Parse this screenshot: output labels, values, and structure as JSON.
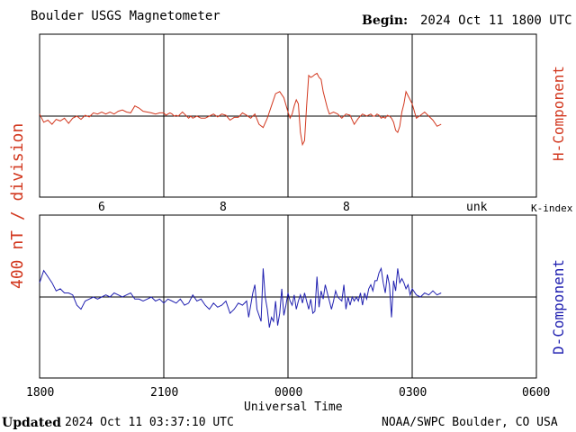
{
  "header": {
    "title": "Boulder USGS Magnetometer",
    "begin_label": "Begin:",
    "begin_value": "2024 Oct 11 1800 UTC"
  },
  "footer": {
    "updated_label": "Updated",
    "updated_value": "2024 Oct 11 03:37:10 UTC",
    "source": "NOAA/SWPC Boulder, CO USA"
  },
  "colors": {
    "h": "#d2381f",
    "d": "#2020b0",
    "axis": "#000000"
  },
  "chart_data": [
    {
      "type": "line",
      "panel": "top",
      "ylabel_right": "H-Component",
      "ylabel_left": "400 nT / division",
      "y_units": "divisions",
      "ylim": [
        -2,
        2
      ],
      "grid": true,
      "x": [
        0,
        0.1,
        0.2,
        0.3,
        0.4,
        0.5,
        0.6,
        0.7,
        0.8,
        0.9,
        1.0,
        1.1,
        1.2,
        1.3,
        1.4,
        1.5,
        1.6,
        1.7,
        1.8,
        1.9,
        2.0,
        2.1,
        2.2,
        2.3,
        2.4,
        2.5,
        2.6,
        2.7,
        2.8,
        2.9,
        3.0,
        3.05,
        3.1,
        3.15,
        3.2,
        3.25,
        3.3,
        3.35,
        3.4,
        3.45,
        3.5,
        3.55,
        3.6,
        3.65,
        3.7,
        3.8,
        3.9,
        4.0,
        4.1,
        4.2,
        4.3,
        4.4,
        4.5,
        4.6,
        4.7,
        4.8,
        4.9,
        5.0,
        5.1,
        5.2,
        5.3,
        5.4,
        5.5,
        5.6,
        5.7,
        5.8,
        5.9,
        6.0,
        6.05,
        6.1,
        6.15,
        6.2,
        6.25,
        6.3,
        6.35,
        6.4,
        6.45,
        6.5,
        6.55,
        6.6,
        6.65,
        6.7,
        6.75,
        6.8,
        6.85,
        6.9,
        6.95,
        7.0,
        7.1,
        7.2,
        7.3,
        7.4,
        7.5,
        7.6,
        7.7,
        7.8,
        7.9,
        8.0,
        8.05,
        8.1,
        8.15,
        8.2,
        8.25,
        8.3,
        8.35,
        8.4,
        8.45,
        8.5,
        8.55,
        8.6,
        8.65,
        8.7,
        8.75,
        8.8,
        8.85,
        8.9,
        9.0,
        9.1,
        9.2,
        9.3,
        9.4,
        9.5,
        9.6,
        9.7
      ],
      "series": [
        {
          "values": [
            0.05,
            -0.15,
            -0.1,
            -0.2,
            -0.08,
            -0.12,
            -0.05,
            -0.18,
            -0.05,
            0.0,
            -0.08,
            0.02,
            -0.02,
            0.08,
            0.05,
            0.1,
            0.05,
            0.1,
            0.05,
            0.12,
            0.15,
            0.1,
            0.08,
            0.25,
            0.2,
            0.12,
            0.1,
            0.08,
            0.05,
            0.08,
            0.08,
            0.02,
            0.05,
            0.08,
            0.05,
            0.0,
            0.02,
            0.0,
            0.05,
            0.1,
            0.05,
            0.0,
            -0.05,
            0.0,
            -0.05,
            0.0,
            -0.05,
            -0.05,
            0.0,
            0.05,
            -0.02,
            0.05,
            0.02,
            -0.1,
            -0.03,
            -0.03,
            0.08,
            0.02,
            -0.05,
            0.05,
            -0.2,
            -0.28,
            -0.05,
            0.25,
            0.55,
            0.6,
            0.45,
            0.1,
            -0.05,
            0.05,
            0.25,
            0.4,
            0.3,
            -0.4,
            -0.7,
            -0.6,
            0.25,
            1.0,
            0.95,
            0.98,
            1.02,
            1.05,
            0.95,
            0.9,
            0.6,
            0.4,
            0.2,
            0.05,
            0.1,
            0.05,
            -0.05,
            0.05,
            0.02,
            -0.2,
            -0.05,
            0.05,
            0.0,
            0.05,
            0.0,
            0.0,
            0.05,
            0.02,
            -0.05,
            -0.02,
            -0.05,
            0.02,
            0.0,
            -0.05,
            -0.15,
            -0.35,
            -0.4,
            -0.25,
            0.1,
            0.3,
            0.6,
            0.5,
            0.3,
            -0.05,
            0.02,
            0.1,
            0.0,
            -0.1,
            -0.25,
            -0.2
          ]
        }
      ]
    },
    {
      "type": "line",
      "panel": "bottom",
      "ylabel_right": "D-Component",
      "y_units": "divisions",
      "ylim": [
        -2,
        2
      ],
      "grid": true,
      "x": [
        0,
        0.1,
        0.2,
        0.3,
        0.4,
        0.5,
        0.6,
        0.7,
        0.8,
        0.9,
        1.0,
        1.1,
        1.2,
        1.3,
        1.4,
        1.5,
        1.6,
        1.7,
        1.8,
        1.9,
        2.0,
        2.1,
        2.2,
        2.3,
        2.4,
        2.5,
        2.6,
        2.7,
        2.8,
        2.9,
        3.0,
        3.1,
        3.2,
        3.3,
        3.4,
        3.5,
        3.6,
        3.7,
        3.8,
        3.9,
        4.0,
        4.1,
        4.2,
        4.3,
        4.4,
        4.5,
        4.6,
        4.7,
        4.8,
        4.9,
        5.0,
        5.05,
        5.1,
        5.15,
        5.2,
        5.25,
        5.3,
        5.35,
        5.4,
        5.45,
        5.5,
        5.55,
        5.6,
        5.65,
        5.7,
        5.75,
        5.8,
        5.85,
        5.9,
        5.95,
        6.0,
        6.05,
        6.1,
        6.15,
        6.2,
        6.25,
        6.3,
        6.35,
        6.4,
        6.45,
        6.5,
        6.55,
        6.6,
        6.65,
        6.7,
        6.75,
        6.8,
        6.85,
        6.9,
        6.95,
        7.0,
        7.05,
        7.1,
        7.15,
        7.2,
        7.25,
        7.3,
        7.35,
        7.4,
        7.45,
        7.5,
        7.55,
        7.6,
        7.65,
        7.7,
        7.75,
        7.8,
        7.85,
        7.9,
        7.95,
        8.0,
        8.05,
        8.1,
        8.15,
        8.2,
        8.25,
        8.3,
        8.35,
        8.4,
        8.45,
        8.5,
        8.55,
        8.6,
        8.65,
        8.7,
        8.75,
        8.8,
        8.85,
        8.9,
        8.95,
        9.0,
        9.1,
        9.2,
        9.3,
        9.4,
        9.5,
        9.6,
        9.7
      ],
      "series": [
        {
          "values": [
            0.35,
            0.65,
            0.5,
            0.35,
            0.15,
            0.2,
            0.1,
            0.1,
            0.05,
            -0.2,
            -0.3,
            -0.1,
            -0.05,
            0.0,
            -0.05,
            0.0,
            0.05,
            0.0,
            0.1,
            0.05,
            0.0,
            0.05,
            0.1,
            -0.05,
            -0.05,
            -0.1,
            -0.05,
            0.0,
            -0.1,
            -0.05,
            -0.15,
            -0.05,
            -0.1,
            -0.15,
            -0.05,
            -0.2,
            -0.15,
            0.05,
            -0.1,
            -0.05,
            -0.2,
            -0.3,
            -0.15,
            -0.25,
            -0.2,
            -0.1,
            -0.4,
            -0.3,
            -0.15,
            -0.2,
            -0.1,
            -0.5,
            -0.2,
            0.1,
            0.3,
            -0.3,
            -0.45,
            -0.6,
            0.7,
            0.0,
            -0.3,
            -0.75,
            -0.5,
            -0.6,
            -0.1,
            -0.7,
            -0.4,
            0.2,
            -0.45,
            -0.2,
            0.1,
            -0.1,
            -0.2,
            0.05,
            -0.3,
            -0.1,
            0.05,
            -0.15,
            0.1,
            -0.1,
            -0.3,
            -0.05,
            -0.4,
            -0.35,
            0.5,
            -0.25,
            0.15,
            -0.05,
            0.3,
            0.1,
            -0.1,
            -0.3,
            -0.1,
            0.15,
            0.0,
            -0.05,
            -0.1,
            0.3,
            -0.3,
            0.0,
            -0.2,
            0.0,
            -0.1,
            0.0,
            -0.1,
            0.1,
            -0.2,
            0.1,
            -0.05,
            0.2,
            0.3,
            0.15,
            0.4,
            0.4,
            0.6,
            0.7,
            0.35,
            0.1,
            0.55,
            0.3,
            -0.5,
            0.4,
            0.15,
            0.7,
            0.35,
            0.45,
            0.35,
            0.2,
            0.3,
            0.05,
            0.2,
            0.05,
            0.0,
            0.1,
            0.05,
            0.15,
            0.05,
            0.1
          ]
        }
      ]
    }
  ],
  "kindex": {
    "label": "K-index",
    "values": [
      "6",
      "8",
      "8",
      "unk"
    ]
  },
  "xaxis": {
    "ticks": [
      "1800",
      "2100",
      "0000",
      "0300",
      "0600"
    ],
    "label": "Universal Time"
  }
}
